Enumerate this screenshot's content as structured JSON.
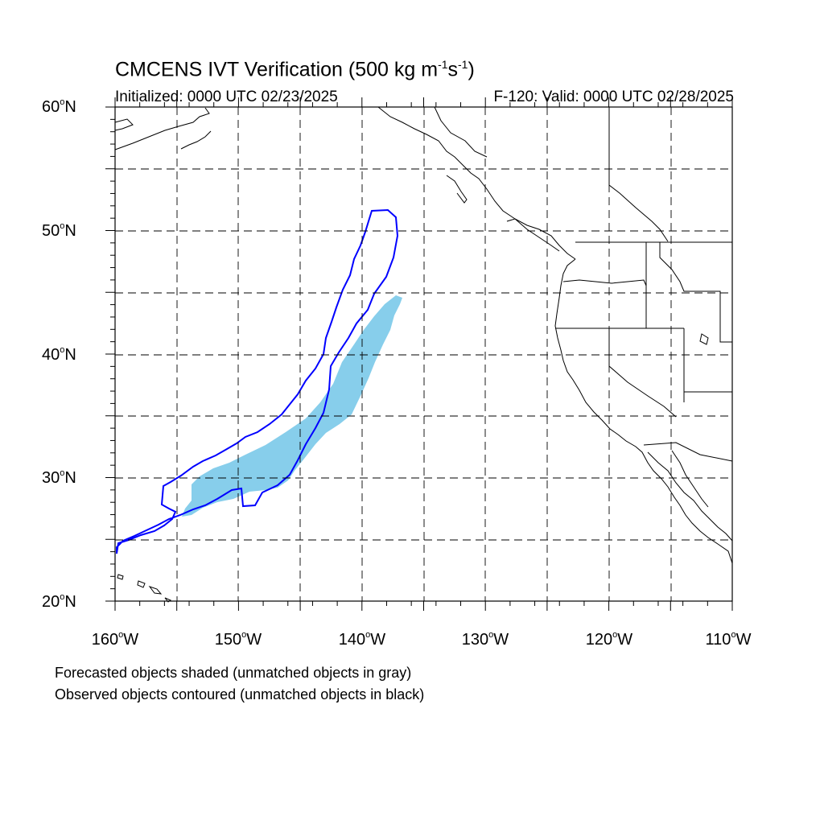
{
  "title": {
    "main": "CMCENS IVT Verification (500 kg m",
    "exp1": "-1",
    "mid": "s",
    "exp2": "-1",
    "close": ")"
  },
  "init_text": "Initialized: 0000 UTC 02/23/2025",
  "valid_text": "F-120: Valid: 0000 UTC 02/28/2025",
  "lat_labels": [
    {
      "num": "60",
      "hem": "N"
    },
    {
      "num": "50",
      "hem": "N"
    },
    {
      "num": "40",
      "hem": "N"
    },
    {
      "num": "30",
      "hem": "N"
    },
    {
      "num": "20",
      "hem": "N"
    }
  ],
  "lon_labels": [
    {
      "num": "160",
      "hem": "W"
    },
    {
      "num": "150",
      "hem": "W"
    },
    {
      "num": "140",
      "hem": "W"
    },
    {
      "num": "130",
      "hem": "W"
    },
    {
      "num": "120",
      "hem": "W"
    },
    {
      "num": "110",
      "hem": "W"
    }
  ],
  "notes": {
    "forecast": "Forecasted objects shaded (unmatched objects in gray)",
    "observed": "Observed objects contoured (unmatched objects in black)"
  },
  "colors": {
    "forecast_fill": "#87ceeb",
    "observed_contour": "#0000ff",
    "coastline": "#000000",
    "grid": "#000000"
  },
  "map_extent": {
    "lon_min": -160,
    "lon_max": -110,
    "lat_min": 20,
    "lat_max": 60
  }
}
